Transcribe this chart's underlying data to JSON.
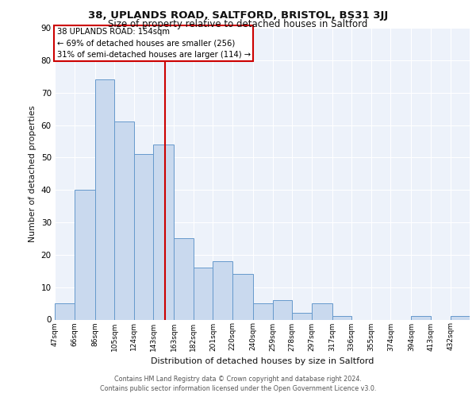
{
  "title_line1": "38, UPLANDS ROAD, SALTFORD, BRISTOL, BS31 3JJ",
  "title_line2": "Size of property relative to detached houses in Saltford",
  "xlabel": "Distribution of detached houses by size in Saltford",
  "ylabel": "Number of detached properties",
  "bar_color": "#c9d9ee",
  "bar_edge_color": "#6699cc",
  "bin_labels": [
    "47sqm",
    "66sqm",
    "86sqm",
    "105sqm",
    "124sqm",
    "143sqm",
    "163sqm",
    "182sqm",
    "201sqm",
    "220sqm",
    "240sqm",
    "259sqm",
    "278sqm",
    "297sqm",
    "317sqm",
    "336sqm",
    "355sqm",
    "374sqm",
    "394sqm",
    "413sqm",
    "432sqm"
  ],
  "bin_values": [
    5,
    40,
    74,
    61,
    51,
    54,
    25,
    16,
    18,
    14,
    5,
    6,
    2,
    5,
    1,
    0,
    0,
    0,
    1,
    0,
    1
  ],
  "property_label": "38 UPLANDS ROAD: 154sqm",
  "annotation_line2": "← 69% of detached houses are smaller (256)",
  "annotation_line3": "31% of semi-detached houses are larger (114) →",
  "vline_x": 154,
  "vline_color": "#cc0000",
  "annotation_box_edge_color": "#cc0000",
  "ylim": [
    0,
    90
  ],
  "yticks": [
    0,
    10,
    20,
    30,
    40,
    50,
    60,
    70,
    80,
    90
  ],
  "bin_edges": [
    47,
    66,
    86,
    105,
    124,
    143,
    163,
    182,
    201,
    220,
    240,
    259,
    278,
    297,
    317,
    336,
    355,
    374,
    394,
    413,
    432,
    451
  ],
  "footer_line1": "Contains HM Land Registry data © Crown copyright and database right 2024.",
  "footer_line2": "Contains public sector information licensed under the Open Government Licence v3.0.",
  "fig_background": "#ffffff",
  "axes_background": "#edf2fa",
  "grid_color": "#ffffff"
}
